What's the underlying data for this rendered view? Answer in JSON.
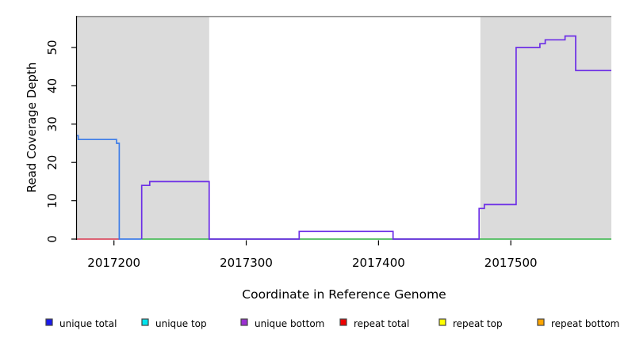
{
  "chart_data": {
    "type": "line",
    "title": "",
    "xlabel": "Coordinate in Reference Genome",
    "ylabel": "Read Coverage Depth",
    "xlim": [
      2017172,
      2017576
    ],
    "ylim": [
      0,
      58.1
    ],
    "x_ticks": [
      2017200,
      2017300,
      2017400,
      2017500
    ],
    "y_ticks": [
      0,
      10,
      20,
      30,
      40,
      50
    ],
    "grid": "off",
    "legend_position": "bottom",
    "background_regions": [
      {
        "name": "repeat-region-left",
        "from": 2017172,
        "to": 2017272,
        "color": "#DBDBDB"
      },
      {
        "name": "repeat-region-right",
        "from": 2017477,
        "to": 2017576,
        "color": "#DBDBDB"
      }
    ],
    "series": [
      {
        "name": "plot-top-boundary",
        "color": "#8C8C8C",
        "points": [
          [
            2017172,
            58.1
          ]
        ],
        "end": 2017576
      },
      {
        "name": "repeat-total-line",
        "color": "#D94F63",
        "points": [
          [
            2017172,
            0
          ]
        ],
        "end": 2017204
      },
      {
        "name": "unique-total-line",
        "color": "#3E7DE8",
        "points": [
          [
            2017172,
            27
          ],
          [
            2017173,
            26
          ],
          [
            2017202,
            25
          ],
          [
            2017204,
            0
          ]
        ],
        "end": 2017221
      },
      {
        "name": "baseline-green-line",
        "color": "#4CBB5C",
        "points": [
          [
            2017221,
            0
          ]
        ],
        "end": 2017576
      },
      {
        "name": "unique-bottom-line",
        "color": "#6C2EE6",
        "points": [
          [
            2017221,
            0
          ],
          [
            2017221,
            14
          ],
          [
            2017227,
            15
          ],
          [
            2017272,
            0
          ],
          [
            2017340,
            2
          ],
          [
            2017411,
            0
          ],
          [
            2017476,
            8
          ],
          [
            2017480,
            9
          ],
          [
            2017504,
            50
          ],
          [
            2017522,
            51
          ],
          [
            2017526,
            52
          ],
          [
            2017541,
            53
          ],
          [
            2017549,
            44
          ]
        ],
        "end": 2017576
      }
    ],
    "legend": [
      {
        "label": "unique total",
        "color": "#1A1AEE"
      },
      {
        "label": "unique top",
        "color": "#00E5EE"
      },
      {
        "label": "unique bottom",
        "color": "#9B30D0"
      },
      {
        "label": "repeat total",
        "color": "#EE0000"
      },
      {
        "label": "repeat top",
        "color": "#FFFF00"
      },
      {
        "label": "repeat bottom",
        "color": "#FFA500"
      }
    ]
  }
}
